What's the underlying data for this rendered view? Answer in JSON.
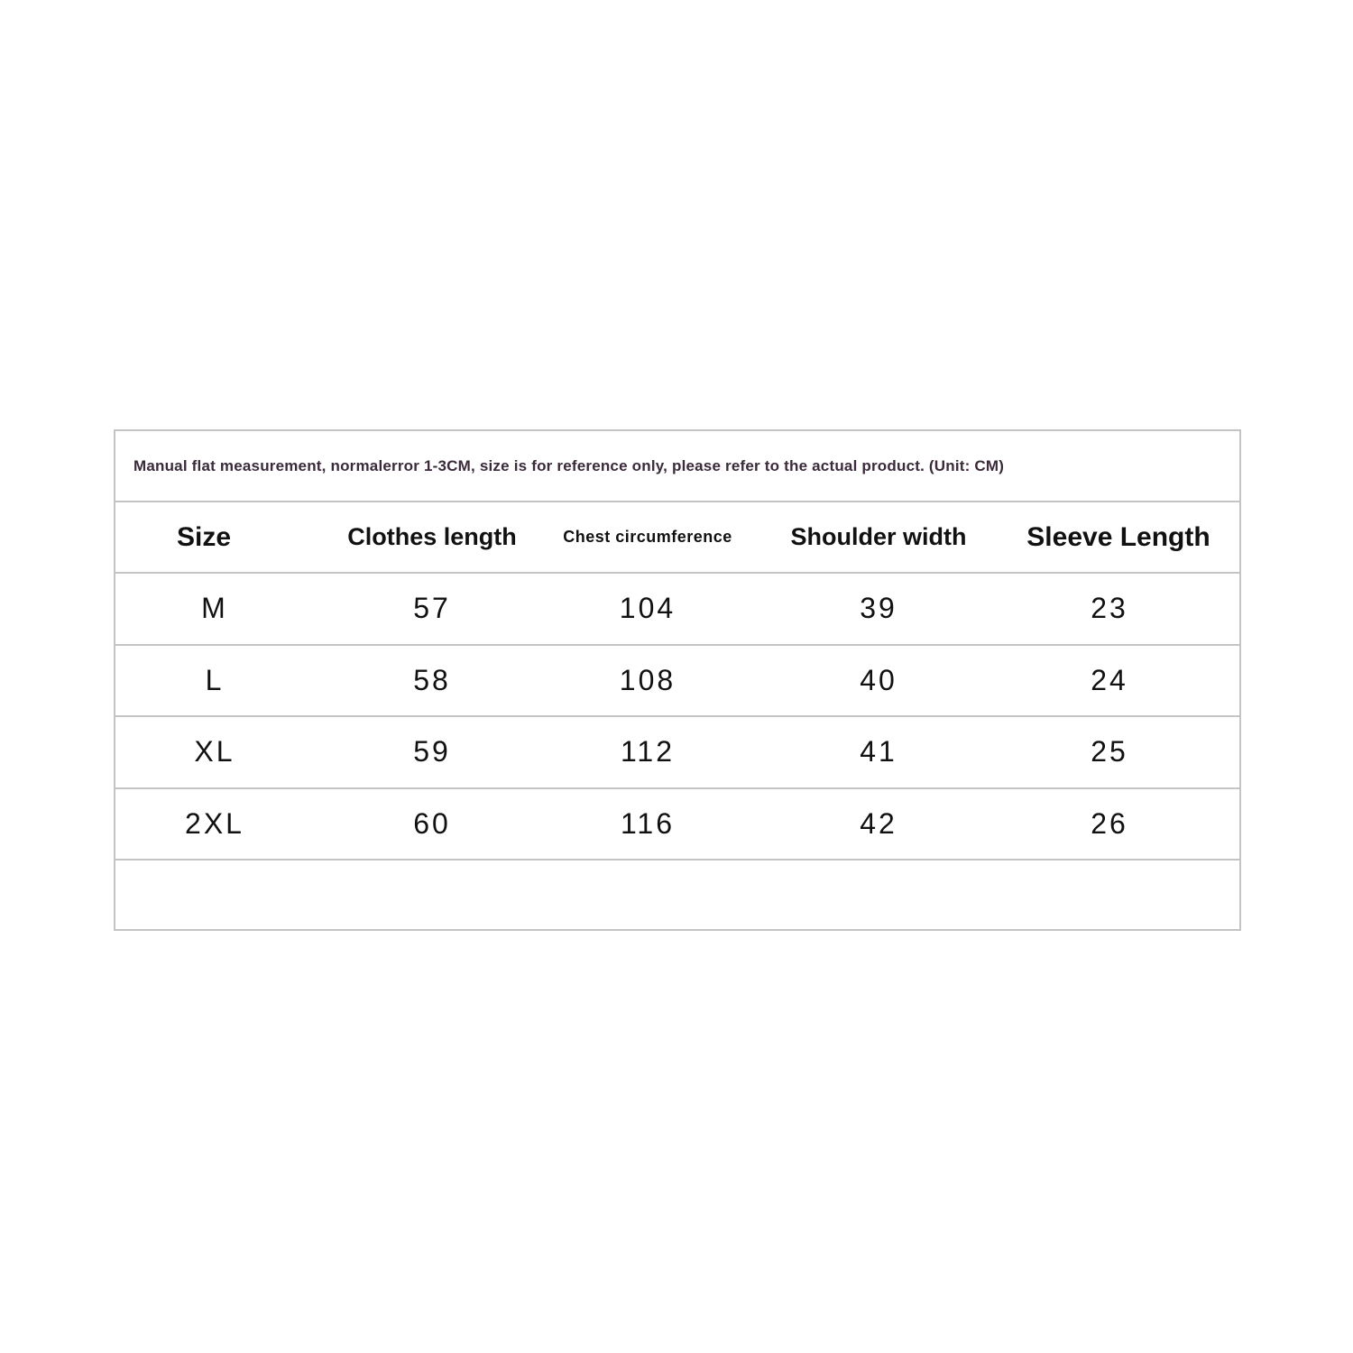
{
  "note": "Manual flat measurement, normalerror 1-3CM, size is for reference only, please refer to the actual product. (Unit: CM)",
  "headers": [
    "Size",
    "Clothes length",
    "Chest circumference",
    "Shoulder width",
    "Sleeve Length"
  ],
  "rows": [
    [
      "M",
      "57",
      "104",
      "39",
      "23"
    ],
    [
      "L",
      "58",
      "108",
      "40",
      "24"
    ],
    [
      "XL",
      "59",
      "112",
      "41",
      "25"
    ],
    [
      "2XL",
      "60",
      "116",
      "42",
      "26"
    ]
  ],
  "colors": {
    "border": "#c4c4c4",
    "note_text": "#3a2a3a",
    "text": "#111111"
  }
}
